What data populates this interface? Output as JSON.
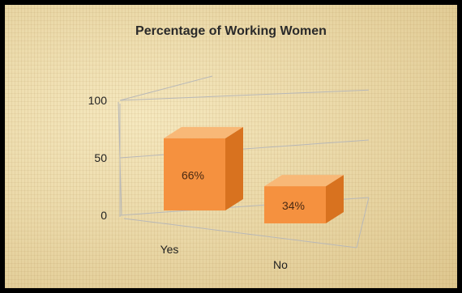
{
  "chart_data": {
    "type": "bar",
    "title": "Percentage of Working Women",
    "categories": [
      "Yes",
      "No"
    ],
    "values": [
      66,
      34
    ],
    "data_labels": [
      "66%",
      "34%"
    ],
    "ylim": [
      0,
      100
    ],
    "yticks": [
      "0",
      "50",
      "100"
    ],
    "grid": true,
    "bar_colors": {
      "front": "#f5913f",
      "top": "#f8b877",
      "side": "#d8721f"
    }
  }
}
